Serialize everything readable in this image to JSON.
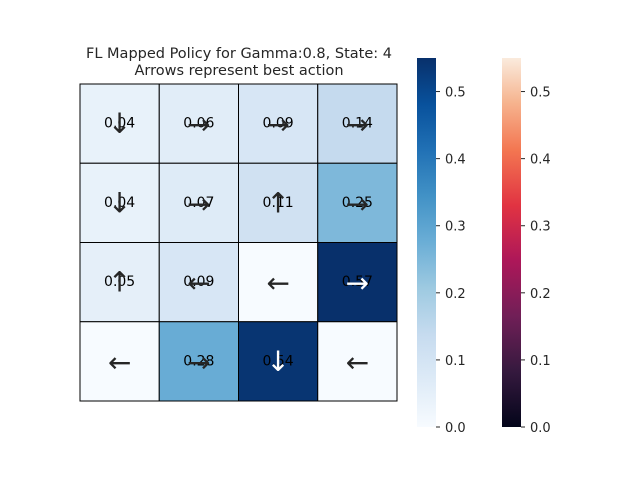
{
  "chart_data": {
    "type": "heatmap",
    "title": "FL Mapped Policy for Gamma:0.8, State: 4",
    "subtitle": "Arrows represent best action",
    "rows": 4,
    "cols": 4,
    "values": [
      [
        0.04,
        0.06,
        0.09,
        0.14
      ],
      [
        0.04,
        0.07,
        0.11,
        0.25
      ],
      [
        0.05,
        0.09,
        0.0,
        0.57
      ],
      [
        0.0,
        0.28,
        0.54,
        0.0
      ]
    ],
    "labels": [
      [
        "0.04",
        "0.06",
        "0.09",
        "0.14"
      ],
      [
        "0.04",
        "0.07",
        "0.11",
        "0.25"
      ],
      [
        "0.05",
        "0.09",
        "",
        "0.57"
      ],
      [
        "",
        "0.28",
        "0.54",
        ""
      ]
    ],
    "actions": [
      [
        "down",
        "right",
        "right",
        "right"
      ],
      [
        "down",
        "right",
        "up",
        "right"
      ],
      [
        "up",
        "left",
        "left",
        "right"
      ],
      [
        "left",
        "right",
        "down",
        "left"
      ]
    ],
    "arrow_glyphs": {
      "left": "←",
      "right": "→",
      "up": "↑",
      "down": "↓"
    },
    "colormaps": [
      {
        "name": "Blues",
        "range": [
          0,
          0.55
        ],
        "ticks": [
          "0.0",
          "0.1",
          "0.2",
          "0.3",
          "0.4",
          "0.5"
        ]
      },
      {
        "name": "rocket",
        "range": [
          0,
          0.55
        ],
        "ticks": [
          "0.0",
          "0.1",
          "0.2",
          "0.3",
          "0.4",
          "0.5"
        ]
      }
    ],
    "grid_lines": true,
    "colors": {
      "grid": "#000000",
      "blues_low": "#f7fbff",
      "blues_high": "#08306b"
    }
  }
}
